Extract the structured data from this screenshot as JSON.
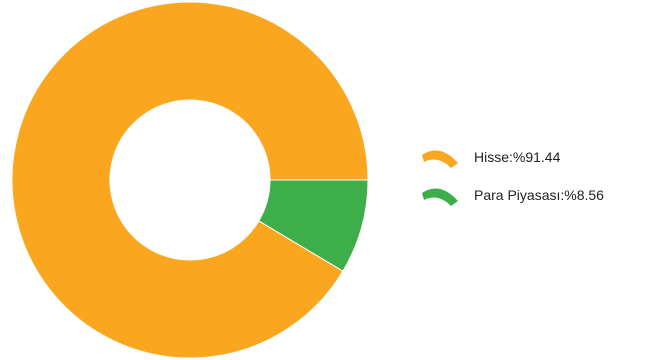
{
  "chart_data": {
    "type": "pie",
    "donut": true,
    "title": "",
    "legend_position": "right",
    "slices": [
      {
        "name": "Hisse",
        "value": 91.44,
        "label": "Hisse:%91.44",
        "color": "#FBA61F"
      },
      {
        "name": "Para Piyasası",
        "value": 8.56,
        "label": "Para Piyasası:%8.56",
        "color": "#3EAE4A"
      }
    ]
  }
}
